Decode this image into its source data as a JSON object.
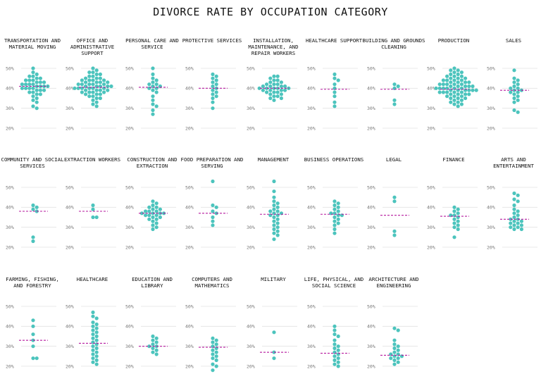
{
  "title": "DIVORCE RATE BY OCCUPATION CATEGORY",
  "colors": {
    "dots": "#4cc4bd",
    "median": "#b5179e",
    "grid": "#e2e2e2",
    "tick": "#777777"
  },
  "chart_data": {
    "type": "scatter",
    "subtype": "beeswarm small multiples",
    "title": "DIVORCE RATE BY OCCUPATION CATEGORY",
    "ylim": [
      20,
      50
    ],
    "yticks": [
      50,
      40,
      30,
      20
    ],
    "ytick_labels": [
      "50%",
      "40%",
      "30%",
      "20%"
    ],
    "grid": true,
    "unit": "%",
    "panels": [
      {
        "label": "TRANSPORTATION AND MATERIAL MOVING",
        "median": 41.0,
        "values": [
          50,
          48,
          47,
          46,
          46,
          45,
          45,
          44,
          44,
          44,
          43,
          43,
          43,
          42,
          42,
          42,
          42,
          41,
          41,
          41,
          41,
          40,
          40,
          40,
          40,
          39,
          39,
          39,
          38,
          38,
          37,
          37,
          36,
          35,
          34,
          33,
          31,
          30
        ]
      },
      {
        "label": "OFFICE AND ADMINISTRATIVE SUPPORT",
        "median": 40.5,
        "values": [
          50,
          49,
          48,
          48,
          47,
          47,
          46,
          46,
          45,
          45,
          45,
          44,
          44,
          44,
          44,
          43,
          43,
          43,
          43,
          42,
          42,
          42,
          42,
          42,
          41,
          41,
          41,
          41,
          41,
          40,
          40,
          40,
          40,
          40,
          40,
          39,
          39,
          39,
          39,
          38,
          38,
          38,
          38,
          37,
          37,
          37,
          36,
          36,
          35,
          35,
          34,
          33,
          32,
          31
        ]
      },
      {
        "label": "PERSONAL CARE AND SERVICE",
        "median": 40.5,
        "values": [
          50,
          47,
          45,
          44,
          43,
          42,
          42,
          41,
          41,
          40,
          40,
          39,
          38,
          36,
          34,
          32,
          31,
          29,
          27
        ]
      },
      {
        "label": "PROTECTIVE SERVICES",
        "median": 40.0,
        "values": [
          47,
          46,
          45,
          44,
          43,
          42,
          41,
          40,
          39,
          38,
          37,
          36,
          35,
          33,
          30
        ]
      },
      {
        "label": "INSTALLATION, MAINTENANCE, AND REPAIR WORKERS",
        "median": 40.0,
        "values": [
          46,
          46,
          45,
          44,
          44,
          43,
          43,
          42,
          42,
          42,
          41,
          41,
          41,
          41,
          40,
          40,
          40,
          40,
          40,
          39,
          39,
          39,
          39,
          38,
          38,
          38,
          37,
          37,
          36,
          36,
          35,
          35,
          34
        ]
      },
      {
        "label": "HEALTHCARE SUPPORT",
        "median": 39.5,
        "values": [
          47,
          45,
          44,
          42,
          40,
          38,
          36,
          33,
          31
        ]
      },
      {
        "label": "BUILDING AND GROUNDS CLEANING",
        "median": 39.5,
        "values": [
          42,
          41,
          40,
          34,
          32
        ]
      },
      {
        "label": "PRODUCTION",
        "median": 39.5,
        "values": [
          50,
          49,
          49,
          48,
          48,
          47,
          47,
          46,
          46,
          46,
          45,
          45,
          45,
          44,
          44,
          44,
          44,
          43,
          43,
          43,
          43,
          42,
          42,
          42,
          42,
          42,
          41,
          41,
          41,
          41,
          41,
          40,
          40,
          40,
          40,
          40,
          40,
          39,
          39,
          39,
          39,
          39,
          39,
          38,
          38,
          38,
          38,
          38,
          37,
          37,
          37,
          37,
          36,
          36,
          36,
          35,
          35,
          35,
          34,
          34,
          33,
          33,
          32,
          32,
          31
        ]
      },
      {
        "label": "SALES",
        "median": 39.0,
        "values": [
          49,
          45,
          44,
          43,
          42,
          41,
          40,
          40,
          39,
          39,
          38,
          38,
          37,
          36,
          35,
          34,
          33,
          29,
          28
        ]
      },
      {
        "label": "COMMUNITY AND SOCIAL SERVICES",
        "median": 38.0,
        "values": [
          41,
          40,
          39,
          38,
          25,
          23
        ]
      },
      {
        "label": "EXTRACTION WORKERS",
        "median": 38.0,
        "values": [
          41,
          39,
          35,
          35
        ]
      },
      {
        "label": "CONSTRUCTION AND EXTRACTION",
        "median": 37.0,
        "values": [
          43,
          42,
          41,
          40,
          40,
          39,
          39,
          38,
          38,
          38,
          37,
          37,
          37,
          37,
          36,
          36,
          36,
          35,
          35,
          34,
          34,
          33,
          32,
          31,
          30,
          29
        ]
      },
      {
        "label": "FOOD PREPARATION AND SERVING",
        "median": 37.0,
        "values": [
          53,
          41,
          40,
          38,
          37,
          35,
          33,
          31
        ]
      },
      {
        "label": "MANAGEMENT",
        "median": 36.5,
        "values": [
          53,
          48,
          45,
          43,
          42,
          41,
          40,
          39,
          38,
          38,
          37,
          37,
          36,
          36,
          35,
          34,
          33,
          32,
          31,
          30,
          29,
          28,
          27,
          26,
          24
        ]
      },
      {
        "label": "BUSINESS OPERATIONS",
        "median": 36.5,
        "values": [
          43,
          42,
          41,
          40,
          39,
          38,
          37,
          37,
          36,
          36,
          35,
          34,
          33,
          32,
          31,
          29,
          27
        ]
      },
      {
        "label": "LEGAL",
        "median": 36.0,
        "values": [
          45,
          43,
          28,
          26
        ]
      },
      {
        "label": "FINANCE",
        "median": 35.5,
        "values": [
          40,
          39,
          38,
          37,
          36,
          36,
          35,
          34,
          33,
          32,
          31,
          30,
          29,
          25
        ]
      },
      {
        "label": "ARTS AND ENTERTAINMENT",
        "median": 34.0,
        "values": [
          47,
          46,
          44,
          43,
          41,
          39,
          38,
          37,
          36,
          35,
          34,
          34,
          33,
          33,
          32,
          32,
          31,
          31,
          30,
          30,
          29,
          29
        ]
      },
      {
        "label": "FARMING, FISHING, AND FORESTRY",
        "median": 33.0,
        "values": [
          43,
          40,
          36,
          33,
          30,
          24,
          24
        ]
      },
      {
        "label": "HEALTHCARE",
        "median": 31.5,
        "values": [
          47,
          45,
          44,
          42,
          41,
          40,
          39,
          38,
          37,
          36,
          35,
          34,
          33,
          32,
          31,
          30,
          29,
          28,
          27,
          26,
          25,
          24,
          23,
          22,
          21
        ]
      },
      {
        "label": "EDUCATION AND LIBRARY",
        "median": 30.0,
        "values": [
          35,
          34,
          33,
          32,
          31,
          30,
          30,
          29,
          28,
          27,
          26
        ]
      },
      {
        "label": "COMPUTERS AND MATHEMATICS",
        "median": 29.5,
        "values": [
          34,
          33,
          32,
          31,
          30,
          29,
          28,
          27,
          26,
          25,
          24,
          23,
          21,
          20,
          18
        ]
      },
      {
        "label": "MILITARY",
        "median": 27.0,
        "values": [
          37,
          27,
          24
        ]
      },
      {
        "label": "LIFE, PHYSICAL, AND SOCIAL SCIENCE",
        "median": 26.5,
        "values": [
          40,
          38,
          36,
          35,
          33,
          31,
          30,
          29,
          28,
          27,
          26,
          25,
          24,
          23,
          22,
          21,
          20
        ]
      },
      {
        "label": "ARCHITECTURE AND ENGINEERING",
        "median": 25.5,
        "values": [
          39,
          38,
          33,
          31,
          30,
          29,
          28,
          27,
          26,
          26,
          25,
          25,
          24,
          24,
          23,
          22,
          21
        ]
      }
    ]
  }
}
